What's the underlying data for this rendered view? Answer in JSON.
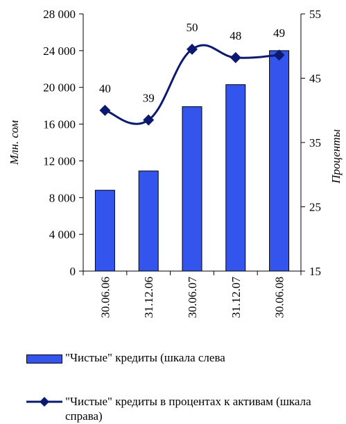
{
  "chart_data": {
    "type": "bar+line",
    "categories": [
      "30.06.06",
      "31.12.06",
      "30.06.07",
      "31.12.07",
      "30.06.08"
    ],
    "series": [
      {
        "name": "\"Чистые\" кредиты (шкала слева",
        "kind": "bar",
        "axis": "left",
        "values": [
          8800,
          10900,
          17900,
          20300,
          24000
        ],
        "color": "#3355ee"
      },
      {
        "name": "\"Чистые\" кредиты в процентах к активам (шкала справа)",
        "kind": "line",
        "axis": "right",
        "values": [
          40,
          38.5,
          49.5,
          48.2,
          48.6
        ],
        "data_labels": [
          "40",
          "39",
          "50",
          "48",
          "49"
        ],
        "color": "#0b1a6e"
      }
    ],
    "left_axis": {
      "label": "Млн. сом",
      "ylim": [
        0,
        28000
      ],
      "ticks": [
        "0",
        "4 000",
        "8 000",
        "12 000",
        "16 000",
        "20 000",
        "24 000",
        "28 000"
      ]
    },
    "right_axis": {
      "label": "Проценты",
      "ylim": [
        15,
        55
      ],
      "ticks": [
        "15",
        "25",
        "35",
        "45",
        "55"
      ]
    },
    "grid": false,
    "legend_position": "bottom"
  }
}
